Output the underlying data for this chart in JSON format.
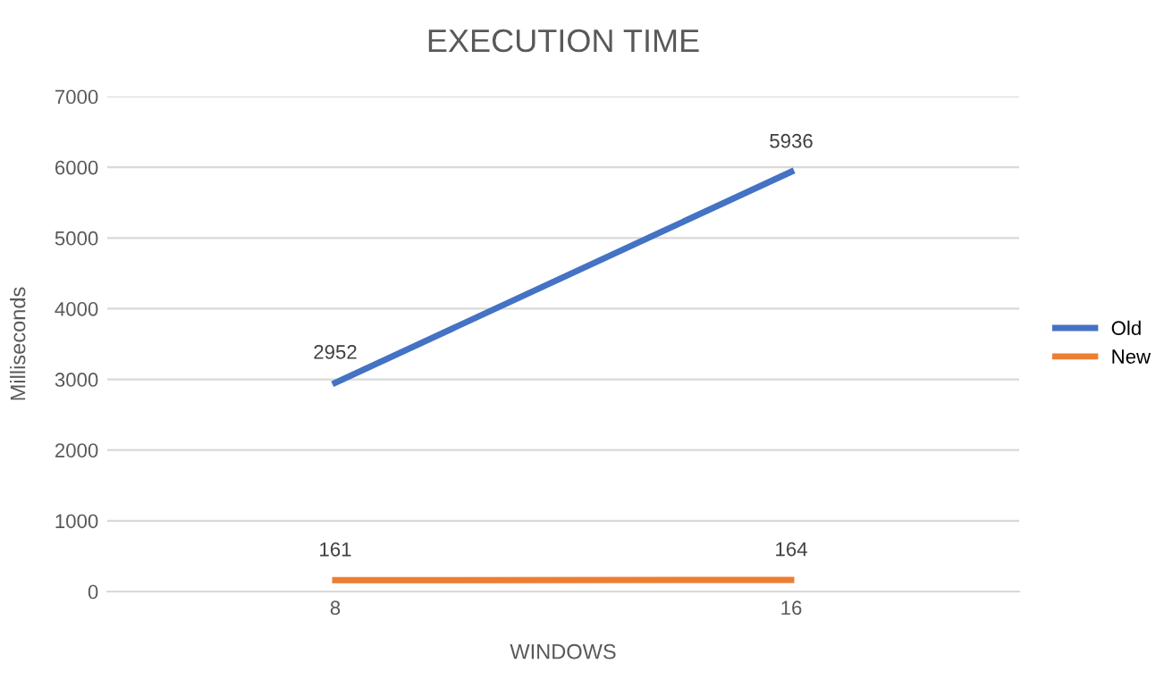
{
  "chart_data": {
    "type": "line",
    "title": "EXECUTION TIME",
    "xlabel": "WINDOWS",
    "ylabel": "Milliseconds",
    "categories": [
      "8",
      "16"
    ],
    "series": [
      {
        "name": "Old",
        "color": "#4472c4",
        "values": [
          2952,
          5936
        ]
      },
      {
        "name": "New",
        "color": "#ed7d31",
        "values": [
          161,
          164
        ]
      }
    ],
    "ylim": [
      0,
      7000
    ],
    "yticks": [
      0,
      1000,
      2000,
      3000,
      4000,
      5000,
      6000,
      7000
    ],
    "grid": "y",
    "legend": "right",
    "data_labels": true,
    "marker": "none",
    "line_style": "solid"
  }
}
